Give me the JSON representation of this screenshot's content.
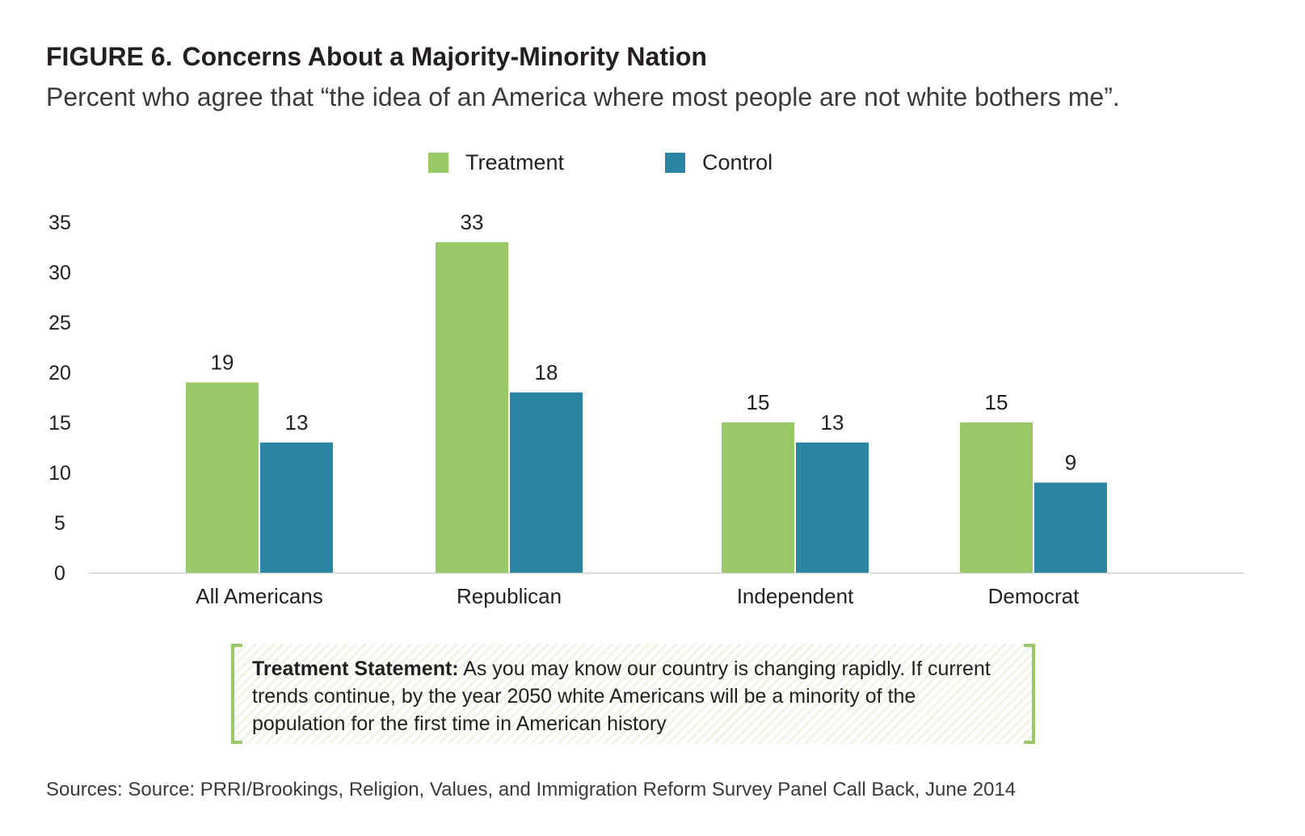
{
  "figure": {
    "number": "FIGURE 6.",
    "title": "Concerns About a Majority-Minority Nation",
    "subtitle": "Percent who agree that “the idea of an America where most people are not white bothers me”."
  },
  "chart_data": {
    "type": "bar",
    "categories": [
      "All Americans",
      "Republican",
      "Independent",
      "Democrat"
    ],
    "series": [
      {
        "name": "Treatment",
        "values": [
          19,
          33,
          15,
          15
        ],
        "color": "#99c866"
      },
      {
        "name": "Control",
        "values": [
          13,
          18,
          13,
          9
        ],
        "color": "#2b86a3"
      }
    ],
    "ylim": [
      0,
      35
    ],
    "yticks": [
      0,
      5,
      10,
      15,
      20,
      25,
      30,
      35
    ],
    "grid": false,
    "legend": "top-center",
    "data_labels": true
  },
  "callout": {
    "label": "Treatment Statement:",
    "text": " As you may know our country is changing rapidly. If current trends continue, by the year 2050 white Americans will be a minority of the population for the first time in American history"
  },
  "source": "Sources: Source: PRRI/Brookings, Religion, Values, and Immigration Reform Survey Panel Call Back, June 2014"
}
